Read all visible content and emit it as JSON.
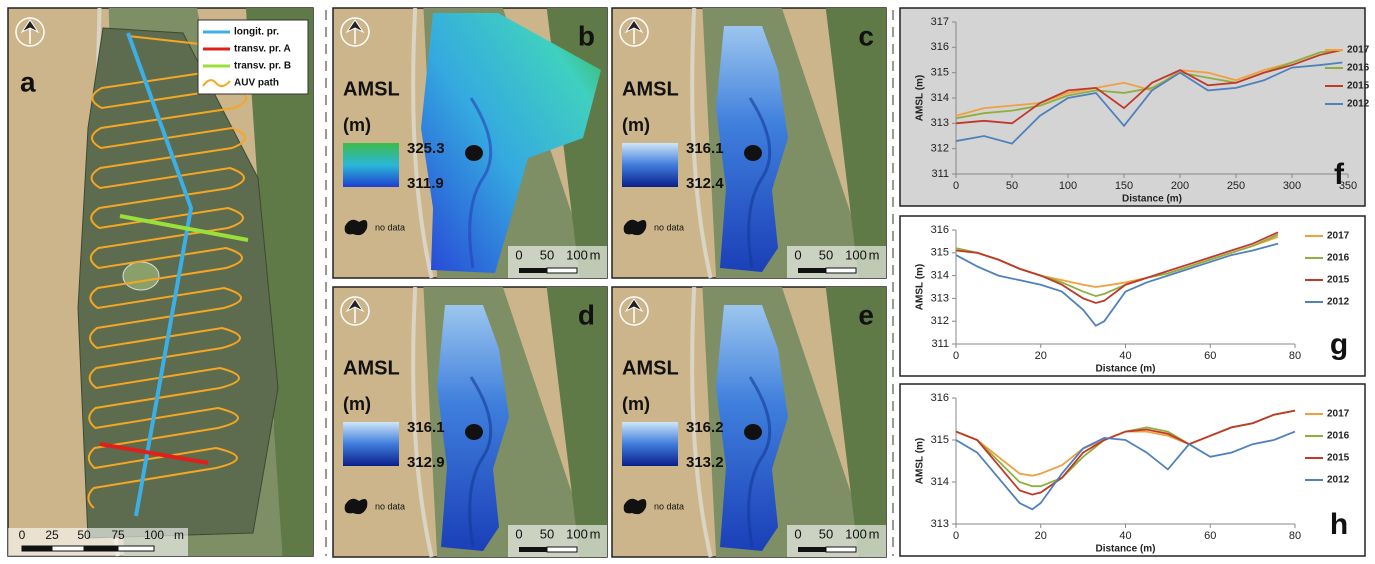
{
  "panel_a": {
    "label": "a",
    "legend": [
      "longit. pr.",
      "transv. pr. A",
      "transv. pr. B",
      "AUV path"
    ],
    "scale": [
      "0",
      "25",
      "50",
      "75",
      "100",
      "m"
    ]
  },
  "maps": [
    {
      "label": "b",
      "title": "AMSL",
      "unit": "(m)",
      "max": 325.3,
      "min": 311.9,
      "no_data": "no data",
      "scale": [
        "0",
        "50",
        "100",
        "m"
      ]
    },
    {
      "label": "c",
      "title": "AMSL",
      "unit": "(m)",
      "max": 316.1,
      "min": 312.4,
      "no_data": "no data",
      "scale": [
        "0",
        "50",
        "100",
        "m"
      ]
    },
    {
      "label": "d",
      "title": "AMSL",
      "unit": "(m)",
      "max": 316.1,
      "min": 312.9,
      "no_data": "no data",
      "scale": [
        "0",
        "50",
        "100",
        "m"
      ]
    },
    {
      "label": "e",
      "title": "AMSL",
      "unit": "(m)",
      "max": 316.2,
      "min": 313.2,
      "no_data": "no data",
      "scale": [
        "0",
        "50",
        "100",
        "m"
      ]
    }
  ],
  "chart_data": [
    {
      "type": "line",
      "panel_label": "f",
      "x_label": "Distance (m)",
      "y_label": "AMSL (m)",
      "background": "#d4d4d4",
      "x": [
        0,
        25,
        50,
        75,
        100,
        125,
        150,
        175,
        200,
        225,
        250,
        275,
        300,
        325,
        345
      ],
      "series": [
        {
          "name": "2017",
          "color": "#f0a040",
          "values": [
            313.3,
            313.6,
            313.7,
            313.8,
            314.2,
            314.4,
            314.6,
            314.3,
            315.1,
            315.0,
            314.7,
            315.1,
            315.4,
            315.8,
            315.9
          ]
        },
        {
          "name": "2016",
          "color": "#8fae3e",
          "values": [
            313.2,
            313.4,
            313.5,
            313.7,
            314.1,
            314.3,
            314.2,
            314.4,
            315.0,
            314.8,
            314.6,
            315.0,
            315.4,
            315.8,
            315.9
          ]
        },
        {
          "name": "2015",
          "color": "#c0392b",
          "values": [
            313.0,
            313.1,
            313.0,
            313.8,
            314.3,
            314.4,
            313.6,
            314.6,
            315.1,
            314.5,
            314.6,
            315.0,
            315.3,
            315.7,
            315.9
          ]
        },
        {
          "name": "2012",
          "color": "#4f81bd",
          "values": [
            312.3,
            312.5,
            312.2,
            313.3,
            314.0,
            314.2,
            312.9,
            314.3,
            315.0,
            314.3,
            314.4,
            314.7,
            315.2,
            315.3,
            315.4
          ]
        }
      ],
      "xlim": [
        0,
        350
      ],
      "xticks": [
        0,
        50,
        100,
        150,
        200,
        250,
        300,
        350
      ],
      "ylim": [
        311,
        317
      ],
      "yticks": [
        311,
        312,
        313,
        314,
        315,
        316,
        317
      ]
    },
    {
      "type": "line",
      "panel_label": "g",
      "x_label": "Distance (m)",
      "y_label": "AMSL (m)",
      "background": "#ffffff",
      "x": [
        0,
        5,
        10,
        15,
        20,
        25,
        30,
        33,
        35,
        40,
        45,
        50,
        55,
        60,
        65,
        70,
        76
      ],
      "series": [
        {
          "name": "2017",
          "color": "#f0a040",
          "values": [
            315.2,
            315.0,
            314.7,
            314.3,
            314.0,
            313.8,
            313.6,
            313.5,
            313.55,
            313.7,
            313.9,
            314.1,
            314.4,
            314.7,
            315.0,
            315.3,
            315.7
          ]
        },
        {
          "name": "2016",
          "color": "#8fae3e",
          "values": [
            315.2,
            315.0,
            314.7,
            314.3,
            314.0,
            313.7,
            313.3,
            313.1,
            313.2,
            313.6,
            313.9,
            314.1,
            314.4,
            314.7,
            315.0,
            315.3,
            315.8
          ]
        },
        {
          "name": "2015",
          "color": "#c0392b",
          "values": [
            315.1,
            315.0,
            314.7,
            314.3,
            314.0,
            313.6,
            313.0,
            312.8,
            312.9,
            313.6,
            313.9,
            314.2,
            314.5,
            314.8,
            315.1,
            315.4,
            315.9
          ]
        },
        {
          "name": "2012",
          "color": "#4f81bd",
          "values": [
            314.9,
            314.4,
            314.0,
            313.8,
            313.6,
            313.3,
            312.5,
            311.8,
            312.0,
            313.3,
            313.7,
            314.0,
            314.3,
            314.6,
            314.9,
            315.1,
            315.4
          ]
        }
      ],
      "xlim": [
        0,
        80
      ],
      "xticks": [
        0,
        20,
        40,
        60,
        80
      ],
      "ylim": [
        311,
        316
      ],
      "yticks": [
        311,
        312,
        313,
        314,
        315,
        316
      ]
    },
    {
      "type": "line",
      "panel_label": "h",
      "x_label": "Distance (m)",
      "y_label": "AMSL (m)",
      "background": "#ffffff",
      "x": [
        0,
        5,
        10,
        15,
        18,
        20,
        25,
        30,
        35,
        40,
        45,
        50,
        55,
        60,
        65,
        70,
        75,
        80
      ],
      "series": [
        {
          "name": "2017",
          "color": "#f0a040",
          "values": [
            315.2,
            315.0,
            314.6,
            314.2,
            314.15,
            314.2,
            314.4,
            314.8,
            315.0,
            315.2,
            315.2,
            315.1,
            314.9,
            315.1,
            315.3,
            315.4,
            315.6,
            315.7
          ]
        },
        {
          "name": "2016",
          "color": "#8fae3e",
          "values": [
            315.2,
            315.0,
            314.5,
            314.0,
            313.9,
            313.9,
            314.1,
            314.6,
            315.0,
            315.2,
            315.3,
            315.2,
            314.9,
            315.1,
            315.3,
            315.4,
            315.6,
            315.7
          ]
        },
        {
          "name": "2015",
          "color": "#c0392b",
          "values": [
            315.2,
            315.0,
            314.4,
            313.8,
            313.7,
            313.75,
            314.1,
            314.7,
            315.0,
            315.2,
            315.25,
            315.15,
            314.9,
            315.1,
            315.3,
            315.4,
            315.6,
            315.7
          ]
        },
        {
          "name": "2012",
          "color": "#4f81bd",
          "values": [
            315.0,
            314.7,
            314.1,
            313.5,
            313.35,
            313.5,
            314.2,
            314.8,
            315.05,
            315.0,
            314.7,
            314.3,
            314.9,
            314.6,
            314.7,
            314.9,
            315.0,
            315.2
          ]
        }
      ],
      "xlim": [
        0,
        80
      ],
      "xticks": [
        0,
        20,
        40,
        60,
        80
      ],
      "ylim": [
        313,
        316
      ],
      "yticks": [
        313,
        314,
        315,
        316
      ]
    }
  ]
}
